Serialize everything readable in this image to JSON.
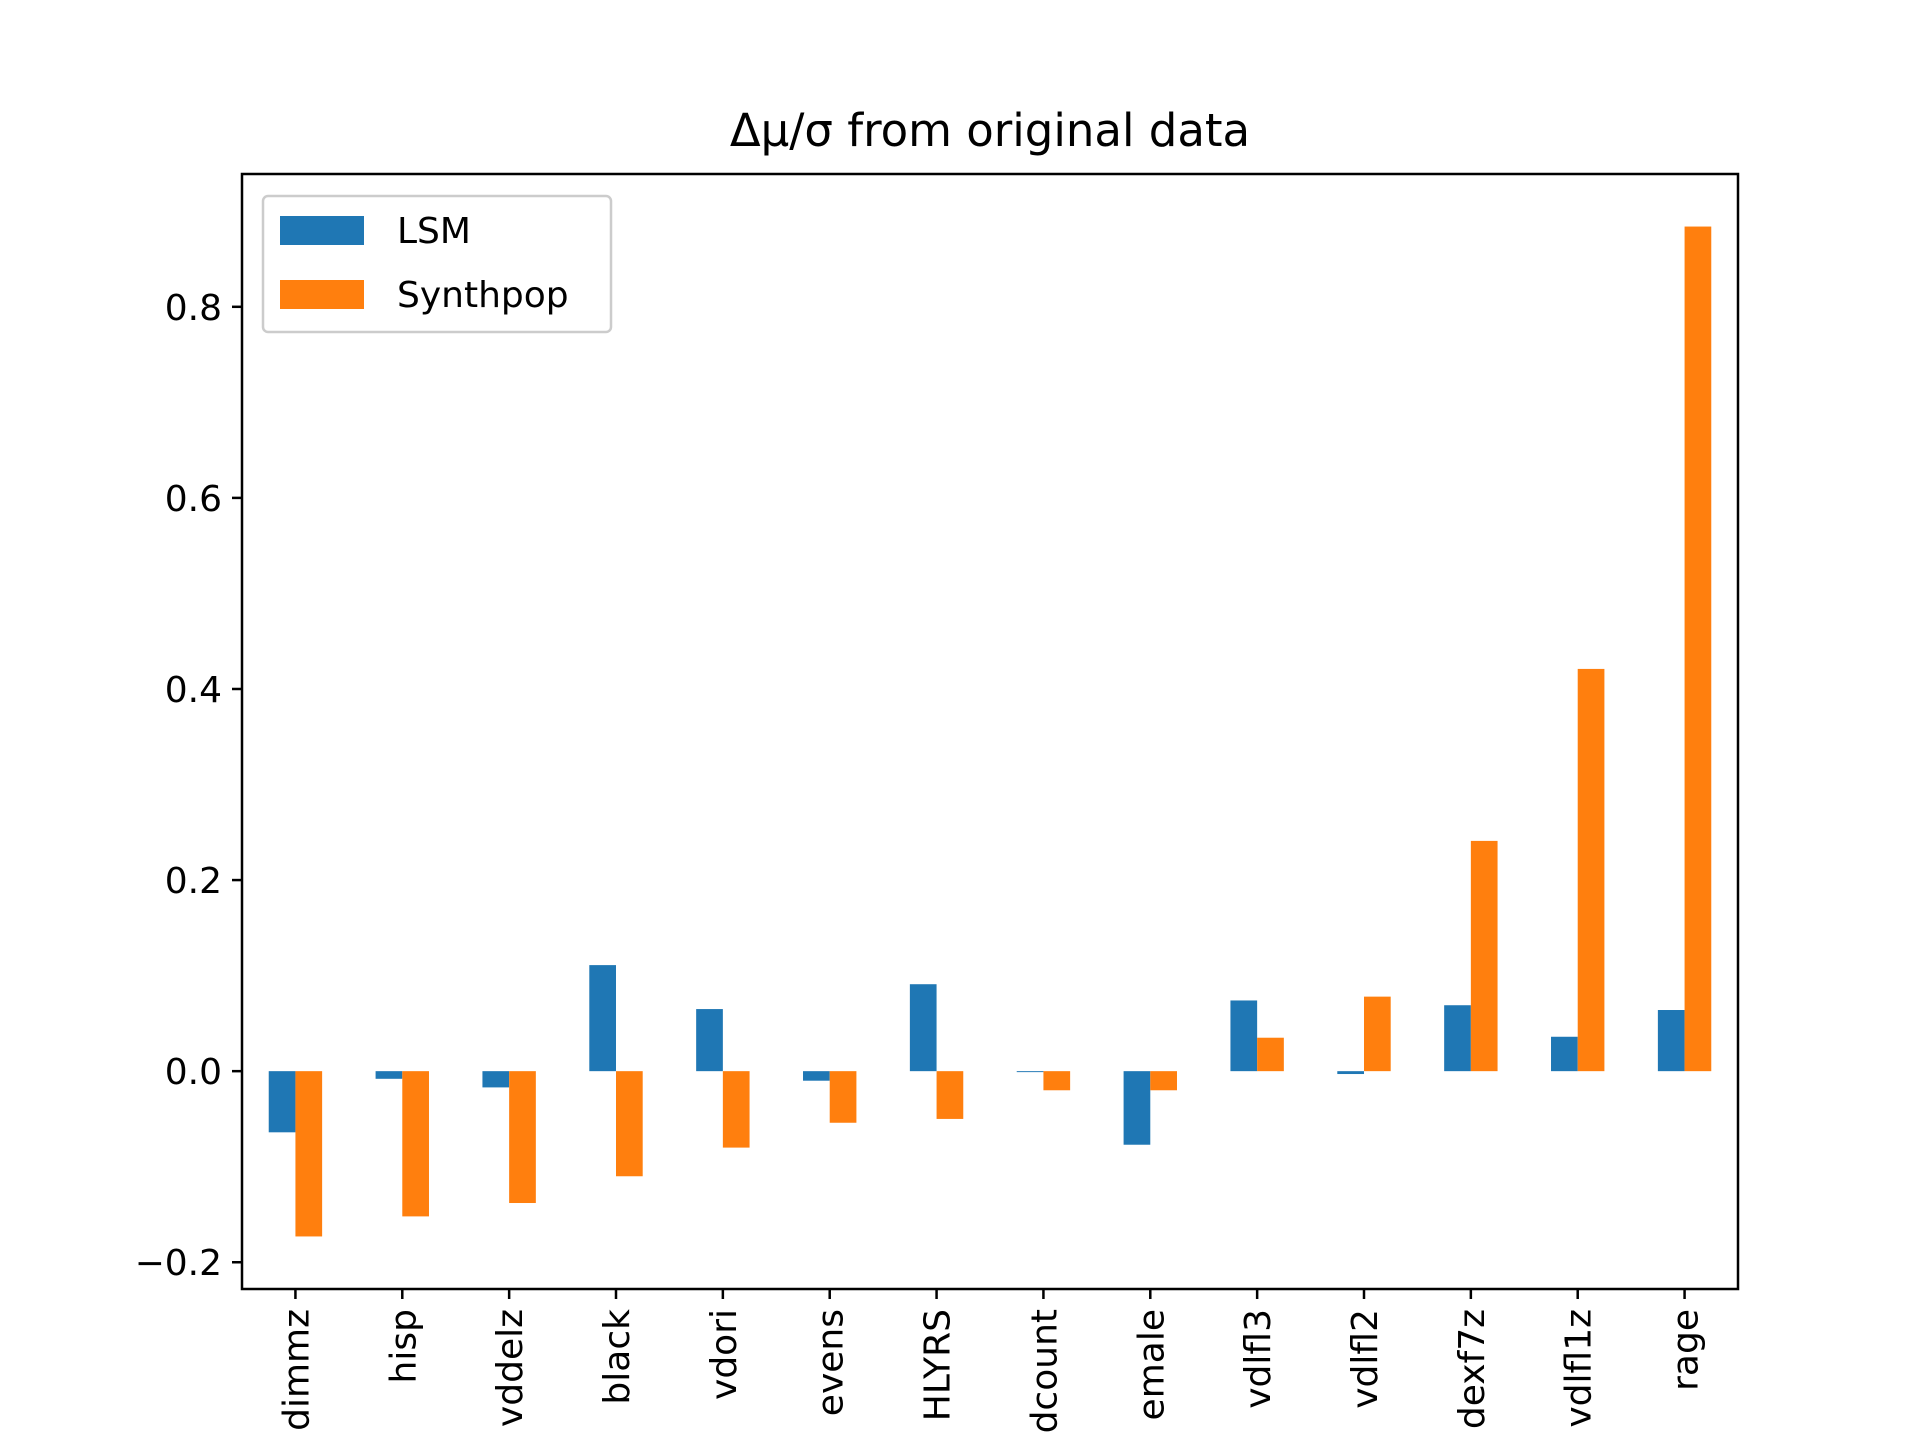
{
  "chart_data": {
    "type": "bar",
    "title": "Δμ/σ from original data",
    "xlabel": "",
    "ylabel": "",
    "categories": [
      "dimmz",
      "hisp",
      "vddelz",
      "black",
      "vdori",
      "evens",
      "HLYRS",
      "dcount",
      "emale",
      "vdlfl3",
      "vdlfl2",
      "dexf7z",
      "vdlfl1z",
      "rage"
    ],
    "series": [
      {
        "name": "LSM",
        "color": "#1f77b4",
        "values": [
          -0.064,
          -0.008,
          -0.017,
          0.111,
          0.065,
          -0.01,
          0.091,
          -0.001,
          -0.077,
          0.074,
          -0.003,
          0.069,
          0.036,
          0.064
        ]
      },
      {
        "name": "Synthpop",
        "color": "#ff7f0e",
        "values": [
          -0.173,
          -0.152,
          -0.138,
          -0.11,
          -0.08,
          -0.054,
          -0.05,
          -0.02,
          -0.02,
          0.035,
          0.078,
          0.241,
          0.421,
          0.884
        ]
      }
    ],
    "ylim": [
      -0.228,
      0.939
    ],
    "yticks": [
      -0.2,
      0.0,
      0.2,
      0.4,
      0.6,
      0.8
    ],
    "ytick_labels": [
      "−0.2",
      "0.0",
      "0.2",
      "0.4",
      "0.6",
      "0.8"
    ],
    "legend_position": "upper-left",
    "grid": false
  }
}
